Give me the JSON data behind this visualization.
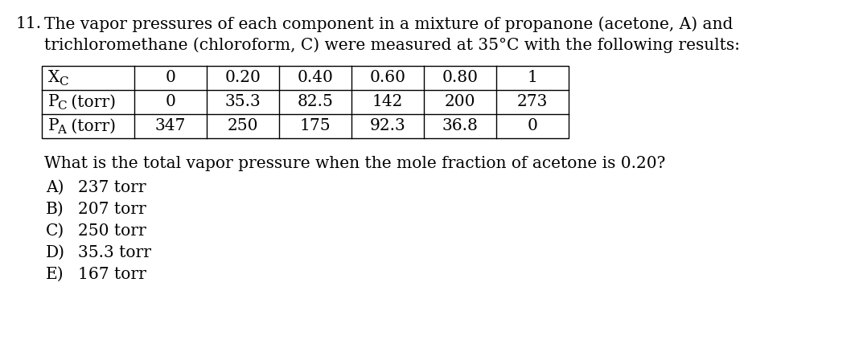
{
  "question_number": "11.",
  "question_text_line1": "The vapor pressures of each component in a mixture of propanone (acetone, A) and",
  "question_text_line2": "trichloromethane (chloroform, C) were measured at 35°C with the following results:",
  "table_xc_row": [
    "0",
    "0.20",
    "0.40",
    "0.60",
    "0.80",
    "1"
  ],
  "table_pc_row": [
    "0",
    "35.3",
    "82.5",
    "142",
    "200",
    "273"
  ],
  "table_pa_row": [
    "347",
    "250",
    "175",
    "92.3",
    "36.8",
    "0"
  ],
  "sub_question": "What is the total vapor pressure when the mole fraction of acetone is 0.20?",
  "choices": [
    [
      "A)",
      "237 torr"
    ],
    [
      "B)",
      "207 torr"
    ],
    [
      "C)",
      "250 torr"
    ],
    [
      "D)",
      "35.3 torr"
    ],
    [
      "E)",
      "167 torr"
    ]
  ],
  "bg_color": "#ffffff",
  "text_color": "#000000",
  "font_size": 14.5,
  "table_font_size": 14.5
}
